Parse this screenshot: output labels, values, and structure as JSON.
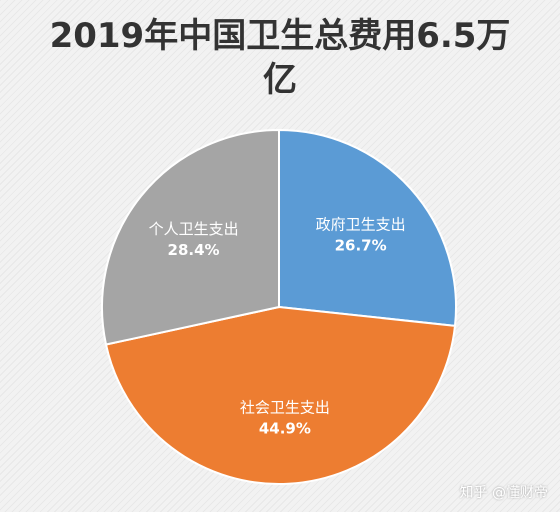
{
  "chart_data": {
    "type": "pie",
    "title": "2019年中国卫生总费用6.5万亿",
    "slices": [
      {
        "label": "政府卫生支出",
        "value": 26.7,
        "value_label": "26.7%",
        "color": "#5B9BD5"
      },
      {
        "label": "社会卫生支出",
        "value": 44.9,
        "value_label": "44.9%",
        "color": "#ED7D31"
      },
      {
        "label": "个人卫生支出",
        "value": 28.4,
        "value_label": "28.4%",
        "color": "#A5A5A5"
      }
    ],
    "start_angle_deg": 0,
    "direction": "clockwise",
    "legend": "none"
  },
  "watermark": "知乎 @懂财帝"
}
